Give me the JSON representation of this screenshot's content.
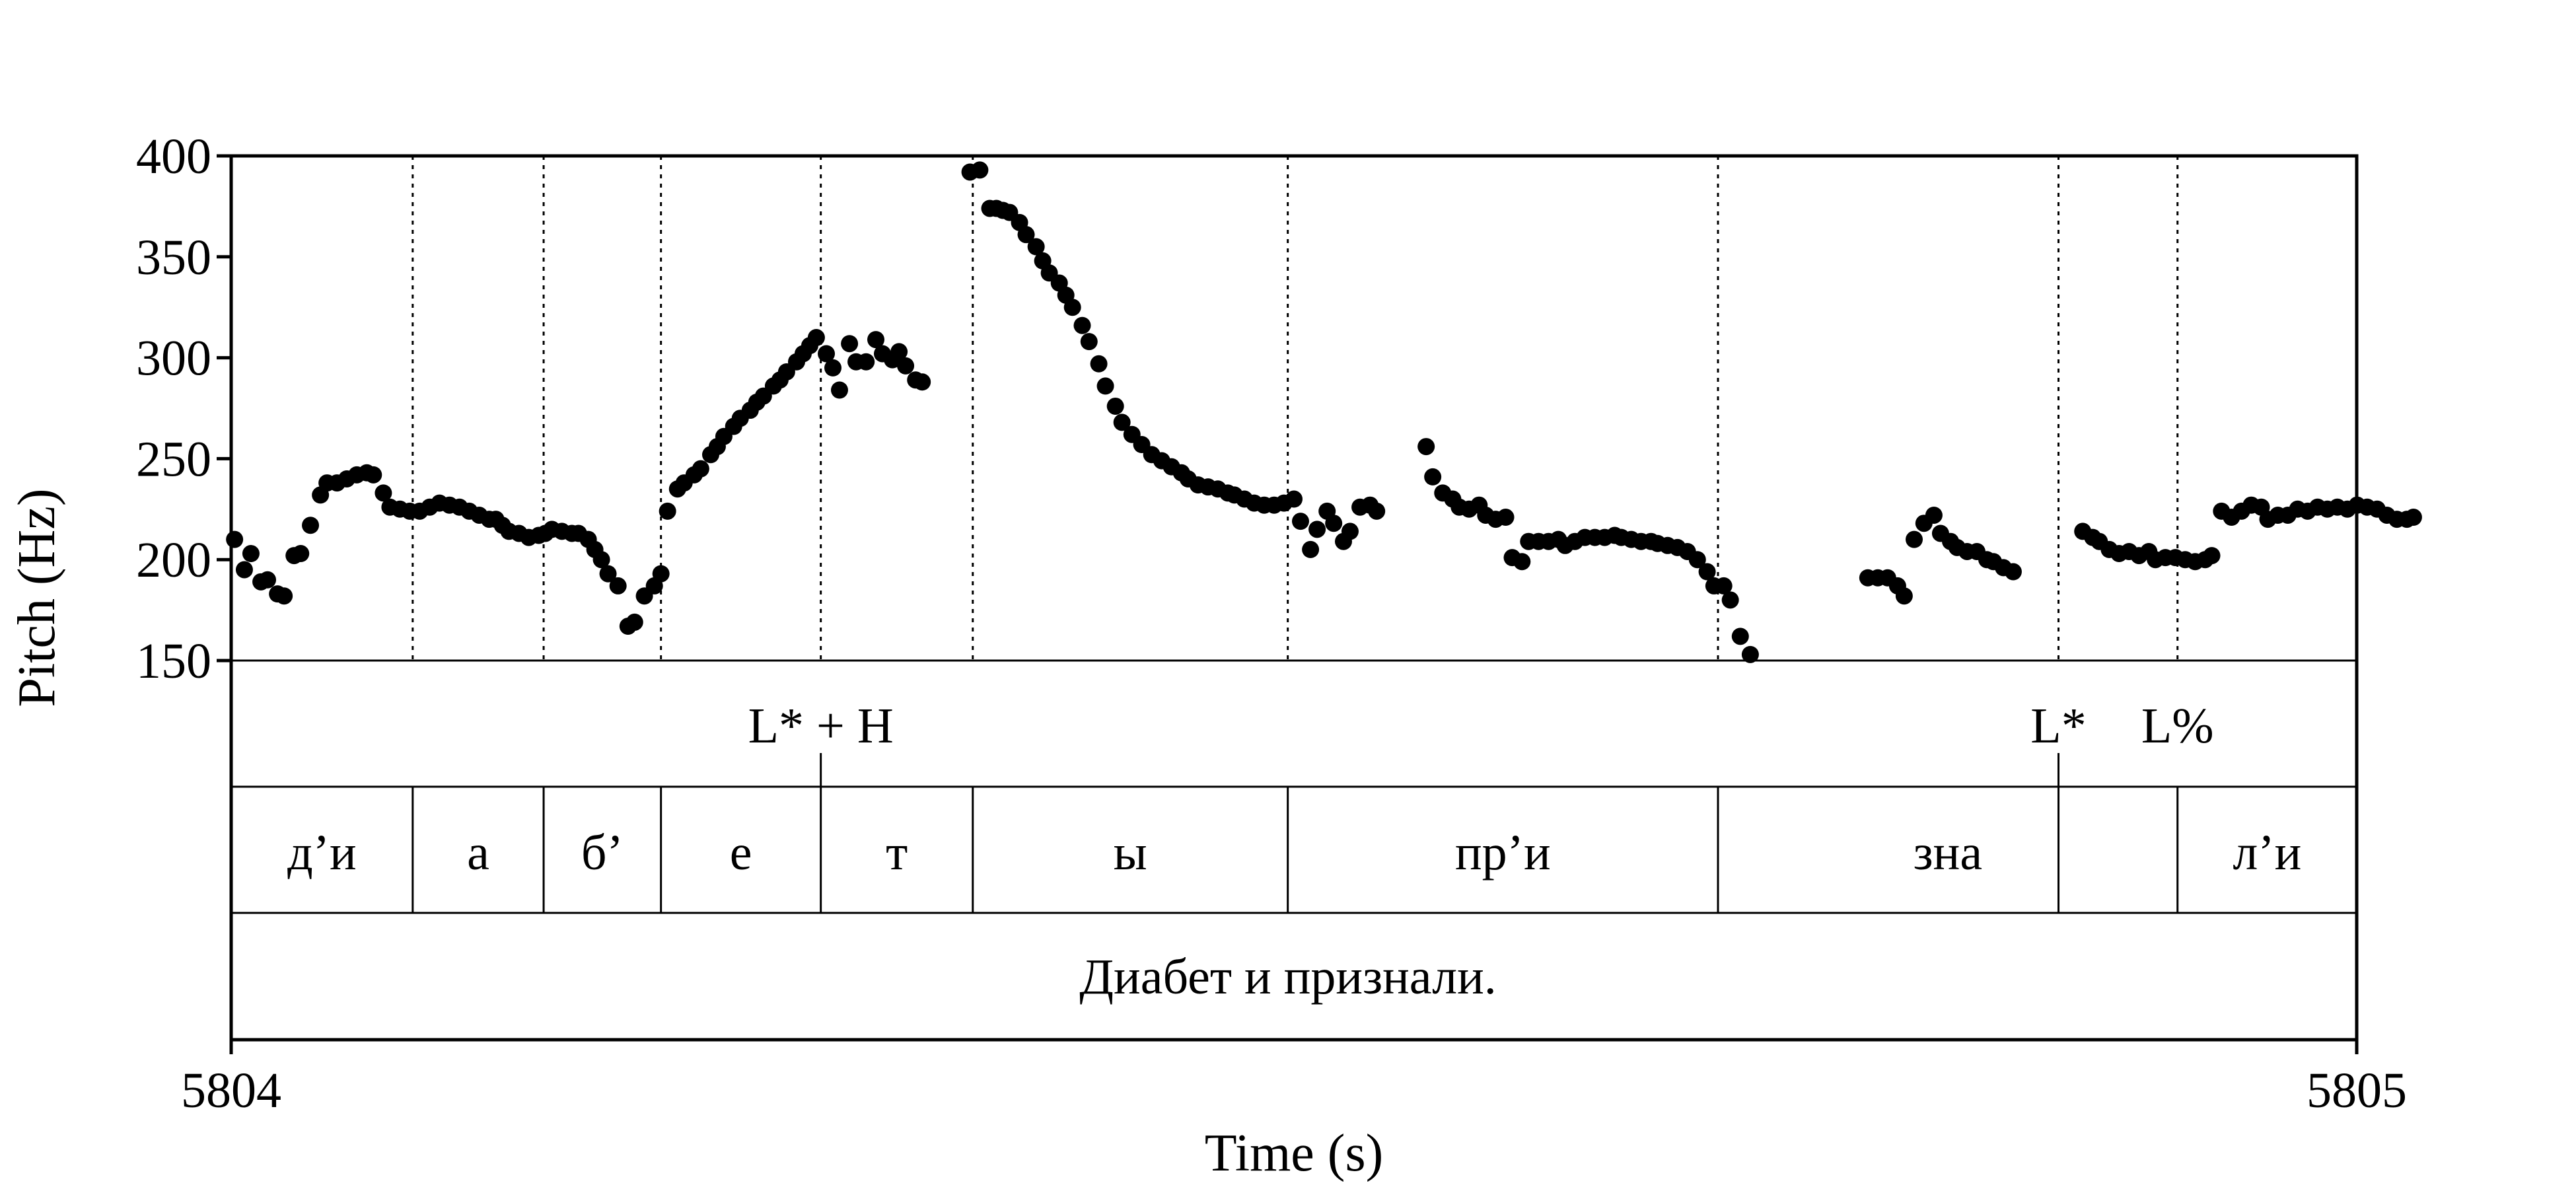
{
  "chart_data": {
    "type": "scatter",
    "title": "",
    "xlabel": "Time (s)",
    "ylabel": "Pitch (Hz)",
    "xlim": [
      5804,
      5805
    ],
    "ylim": [
      150,
      400
    ],
    "x_ticks": [
      "5804",
      "5805"
    ],
    "y_ticks": [
      "400",
      "350",
      "300",
      "250",
      "200",
      "150"
    ],
    "grid": false,
    "series": [
      {
        "color": "#000000",
        "points": [
          [
            5804.0016,
            210
          ],
          [
            5804.0062,
            195
          ],
          [
            5804.0093,
            203
          ],
          [
            5804.014,
            189
          ],
          [
            5804.0171,
            190
          ],
          [
            5804.0218,
            183
          ],
          [
            5804.0249,
            182
          ],
          [
            5804.0296,
            202
          ],
          [
            5804.0327,
            203
          ],
          [
            5804.0373,
            217
          ],
          [
            5804.042,
            232
          ],
          [
            5804.0451,
            238
          ],
          [
            5804.0498,
            238
          ],
          [
            5804.0544,
            240
          ],
          [
            5804.0591,
            242
          ],
          [
            5804.0638,
            243
          ],
          [
            5804.0669,
            242
          ],
          [
            5804.0716,
            233
          ],
          [
            5804.0747,
            226
          ],
          [
            5804.0794,
            225
          ],
          [
            5804.084,
            224
          ],
          [
            5804.0887,
            224
          ],
          [
            5804.0934,
            226
          ],
          [
            5804.098,
            228
          ],
          [
            5804.1027,
            227
          ],
          [
            5804.1074,
            226
          ],
          [
            5804.112,
            224
          ],
          [
            5804.1167,
            222
          ],
          [
            5804.1214,
            220
          ],
          [
            5804.1245,
            220
          ],
          [
            5804.1276,
            217
          ],
          [
            5804.1307,
            214
          ],
          [
            5804.1354,
            213
          ],
          [
            5804.14,
            211
          ],
          [
            5804.1447,
            212
          ],
          [
            5804.1478,
            213
          ],
          [
            5804.1509,
            215
          ],
          [
            5804.1556,
            214
          ],
          [
            5804.1603,
            213
          ],
          [
            5804.1634,
            213
          ],
          [
            5804.168,
            210
          ],
          [
            5804.1711,
            205
          ],
          [
            5804.1742,
            200
          ],
          [
            5804.1773,
            193
          ],
          [
            5804.182,
            187
          ],
          [
            5804.1867,
            167
          ],
          [
            5804.1898,
            169
          ],
          [
            5804.1944,
            182
          ],
          [
            5804.1991,
            187
          ],
          [
            5804.2022,
            193
          ],
          [
            5804.2053,
            224
          ],
          [
            5804.21,
            235
          ],
          [
            5804.2131,
            238
          ],
          [
            5804.2178,
            242
          ],
          [
            5804.2209,
            245
          ],
          [
            5804.2256,
            252
          ],
          [
            5804.2287,
            256
          ],
          [
            5804.2318,
            261
          ],
          [
            5804.2364,
            266
          ],
          [
            5804.2395,
            270
          ],
          [
            5804.2442,
            274
          ],
          [
            5804.2473,
            278
          ],
          [
            5804.2504,
            281
          ],
          [
            5804.2551,
            286
          ],
          [
            5804.2582,
            289
          ],
          [
            5804.2613,
            293
          ],
          [
            5804.266,
            298
          ],
          [
            5804.2691,
            302
          ],
          [
            5804.2722,
            306
          ],
          [
            5804.2753,
            310
          ],
          [
            5804.28,
            302
          ],
          [
            5804.2831,
            295
          ],
          [
            5804.2862,
            284
          ],
          [
            5804.2909,
            307
          ],
          [
            5804.294,
            298
          ],
          [
            5804.2987,
            298
          ],
          [
            5804.3033,
            309
          ],
          [
            5804.3064,
            302
          ],
          [
            5804.3111,
            299
          ],
          [
            5804.3142,
            303
          ],
          [
            5804.3173,
            296
          ],
          [
            5804.322,
            289
          ],
          [
            5804.3251,
            288
          ],
          [
            5804.3476,
            392
          ],
          [
            5804.3522,
            393
          ],
          [
            5804.3569,
            374
          ],
          [
            5804.36,
            374
          ],
          [
            5804.3631,
            373
          ],
          [
            5804.3662,
            372
          ],
          [
            5804.3709,
            367
          ],
          [
            5804.374,
            361
          ],
          [
            5804.3787,
            355
          ],
          [
            5804.3818,
            348
          ],
          [
            5804.3849,
            342
          ],
          [
            5804.3896,
            337
          ],
          [
            5804.3927,
            331
          ],
          [
            5804.3958,
            325
          ],
          [
            5804.4004,
            316
          ],
          [
            5804.4036,
            308
          ],
          [
            5804.4082,
            297
          ],
          [
            5804.4113,
            286
          ],
          [
            5804.416,
            276
          ],
          [
            5804.4191,
            268
          ],
          [
            5804.4238,
            262
          ],
          [
            5804.4284,
            257
          ],
          [
            5804.4331,
            252
          ],
          [
            5804.4378,
            249
          ],
          [
            5804.4424,
            246
          ],
          [
            5804.4471,
            243
          ],
          [
            5804.4502,
            240
          ],
          [
            5804.4549,
            237
          ],
          [
            5804.4596,
            236
          ],
          [
            5804.4642,
            235
          ],
          [
            5804.4689,
            233
          ],
          [
            5804.472,
            232
          ],
          [
            5804.4767,
            230
          ],
          [
            5804.4813,
            228
          ],
          [
            5804.486,
            227
          ],
          [
            5804.4907,
            227
          ],
          [
            5804.4953,
            228
          ],
          [
            5804.5,
            230
          ],
          [
            5804.5031,
            219
          ],
          [
            5804.5078,
            205
          ],
          [
            5804.5109,
            215
          ],
          [
            5804.5156,
            224
          ],
          [
            5804.5187,
            218
          ],
          [
            5804.5233,
            209
          ],
          [
            5804.5264,
            214
          ],
          [
            5804.5311,
            226
          ],
          [
            5804.5358,
            227
          ],
          [
            5804.5389,
            224
          ],
          [
            5804.5622,
            256
          ],
          [
            5804.5653,
            241
          ],
          [
            5804.57,
            233
          ],
          [
            5804.5747,
            230
          ],
          [
            5804.5778,
            226
          ],
          [
            5804.5824,
            225
          ],
          [
            5804.5871,
            227
          ],
          [
            5804.5902,
            222
          ],
          [
            5804.5949,
            220
          ],
          [
            5804.5996,
            221
          ],
          [
            5804.6027,
            201
          ],
          [
            5804.6073,
            199
          ],
          [
            5804.6104,
            209
          ],
          [
            5804.6151,
            209
          ],
          [
            5804.6198,
            209
          ],
          [
            5804.6244,
            210
          ],
          [
            5804.6276,
            207
          ],
          [
            5804.6322,
            209
          ],
          [
            5804.6369,
            211
          ],
          [
            5804.6416,
            211
          ],
          [
            5804.6462,
            211
          ],
          [
            5804.6509,
            212
          ],
          [
            5804.654,
            211
          ],
          [
            5804.6587,
            210
          ],
          [
            5804.6633,
            209
          ],
          [
            5804.668,
            209
          ],
          [
            5804.6711,
            208
          ],
          [
            5804.6758,
            207
          ],
          [
            5804.6804,
            206
          ],
          [
            5804.6851,
            204
          ],
          [
            5804.6898,
            200
          ],
          [
            5804.6944,
            194
          ],
          [
            5804.6976,
            187
          ],
          [
            5804.7022,
            187
          ],
          [
            5804.7053,
            180
          ],
          [
            5804.71,
            162
          ],
          [
            5804.7147,
            153
          ],
          [
            5804.77,
            191
          ],
          [
            5804.7747,
            191
          ],
          [
            5804.7793,
            191
          ],
          [
            5804.784,
            187
          ],
          [
            5804.7871,
            182
          ],
          [
            5804.7918,
            210
          ],
          [
            5804.7964,
            218
          ],
          [
            5804.8011,
            222
          ],
          [
            5804.8042,
            213
          ],
          [
            5804.8089,
            209
          ],
          [
            5804.812,
            206
          ],
          [
            5804.8167,
            204
          ],
          [
            5804.8213,
            204
          ],
          [
            5804.826,
            200
          ],
          [
            5804.8291,
            199
          ],
          [
            5804.8338,
            196
          ],
          [
            5804.8384,
            194
          ],
          [
            5804.8711,
            214
          ],
          [
            5804.8758,
            211
          ],
          [
            5804.8789,
            209
          ],
          [
            5804.8836,
            205
          ],
          [
            5804.8882,
            203
          ],
          [
            5804.8929,
            204
          ],
          [
            5804.8976,
            202
          ],
          [
            5804.9022,
            204
          ],
          [
            5804.9053,
            200
          ],
          [
            5804.91,
            201
          ],
          [
            5804.9147,
            201
          ],
          [
            5804.9193,
            200
          ],
          [
            5804.924,
            199
          ],
          [
            5804.9287,
            200
          ],
          [
            5804.9318,
            202
          ],
          [
            5804.9364,
            224
          ],
          [
            5804.9411,
            221
          ],
          [
            5804.9458,
            224
          ],
          [
            5804.9504,
            227
          ],
          [
            5804.9551,
            226
          ],
          [
            5804.9582,
            220
          ],
          [
            5804.9629,
            222
          ],
          [
            5804.9676,
            222
          ],
          [
            5804.9722,
            225
          ],
          [
            5804.9769,
            224
          ],
          [
            5804.9816,
            226
          ],
          [
            5804.9862,
            225
          ],
          [
            5804.9909,
            226
          ],
          [
            5804.9956,
            225
          ],
          [
            5805.0002,
            227
          ],
          [
            5805.0049,
            226
          ],
          [
            5805.0096,
            225
          ],
          [
            5805.0142,
            222
          ],
          [
            5805.0189,
            220
          ],
          [
            5805.0236,
            220
          ],
          [
            5805.0267,
            221
          ]
        ]
      }
    ],
    "boundaries": [
      5804.0854,
      5804.147,
      5804.2022,
      5804.2774,
      5804.3489,
      5804.4971,
      5804.6995,
      5804.8597,
      5804.9157
    ],
    "tones": [
      {
        "time": 5804.2774,
        "label": "L* + H",
        "label_time": 5804.2774
      },
      {
        "time": 5804.8597,
        "label": "L*",
        "label_time": 5804.8597
      },
      {
        "time": null,
        "label": "L%",
        "label_time": 5804.9157
      }
    ],
    "segments": [
      {
        "start": 5804.0,
        "end": 5804.0854,
        "label": "д’и"
      },
      {
        "start": 5804.0854,
        "end": 5804.147,
        "label": "а"
      },
      {
        "start": 5804.147,
        "end": 5804.2022,
        "label": "б’"
      },
      {
        "start": 5804.2022,
        "end": 5804.2774,
        "label": "е"
      },
      {
        "start": 5804.2774,
        "end": 5804.3489,
        "label": "т"
      },
      {
        "start": 5804.3489,
        "end": 5804.4971,
        "label": "ы"
      },
      {
        "start": 5804.4971,
        "end": 5804.6995,
        "label": "пр’и"
      },
      {
        "start": 5804.6995,
        "end": 5804.9157,
        "label": "зна"
      },
      {
        "start": 5804.9157,
        "end": 5805.0,
        "label": "л’и"
      }
    ],
    "sentence": "Диабет и признали."
  }
}
